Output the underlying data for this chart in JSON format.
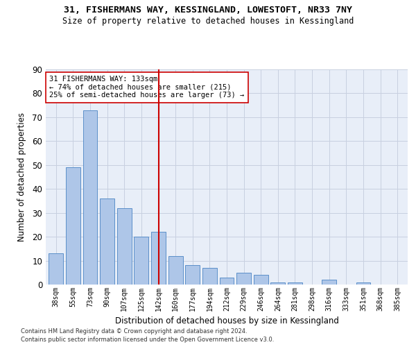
{
  "title_line1": "31, FISHERMANS WAY, KESSINGLAND, LOWESTOFT, NR33 7NY",
  "title_line2": "Size of property relative to detached houses in Kessingland",
  "xlabel": "Distribution of detached houses by size in Kessingland",
  "ylabel": "Number of detached properties",
  "categories": [
    "38sqm",
    "55sqm",
    "73sqm",
    "90sqm",
    "107sqm",
    "125sqm",
    "142sqm",
    "160sqm",
    "177sqm",
    "194sqm",
    "212sqm",
    "229sqm",
    "246sqm",
    "264sqm",
    "281sqm",
    "298sqm",
    "316sqm",
    "333sqm",
    "351sqm",
    "368sqm",
    "385sqm"
  ],
  "values": [
    13,
    49,
    73,
    36,
    32,
    20,
    22,
    12,
    8,
    7,
    3,
    5,
    4,
    1,
    1,
    0,
    2,
    0,
    1,
    0,
    0
  ],
  "bar_color": "#aec6e8",
  "bar_edge_color": "#5b8fc9",
  "vline_x_index": 6,
  "vline_color": "#cc0000",
  "annotation_text": "31 FISHERMANS WAY: 133sqm\n← 74% of detached houses are smaller (215)\n25% of semi-detached houses are larger (73) →",
  "annotation_box_color": "#ffffff",
  "annotation_box_edge_color": "#cc0000",
  "ylim": [
    0,
    90
  ],
  "yticks": [
    0,
    10,
    20,
    30,
    40,
    50,
    60,
    70,
    80,
    90
  ],
  "grid_color": "#c8d0e0",
  "background_color": "#e8eef8",
  "footnote_line1": "Contains HM Land Registry data © Crown copyright and database right 2024.",
  "footnote_line2": "Contains public sector information licensed under the Open Government Licence v3.0."
}
